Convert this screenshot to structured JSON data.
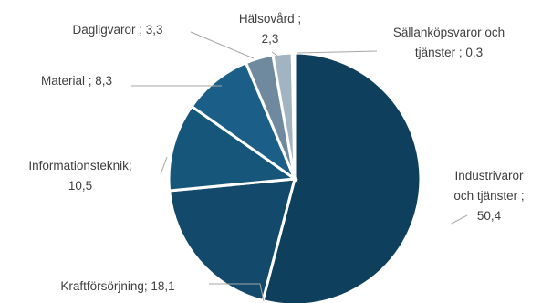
{
  "chart_data": {
    "type": "pie",
    "title": "",
    "slices": [
      {
        "label_lines": [
          "Industrivaror",
          "och tjänster ;",
          "50,4"
        ],
        "value": 50.4,
        "color": "#0e3f5c"
      },
      {
        "label_lines": [
          "Kraftförsörjning; 18,1"
        ],
        "value": 18.1,
        "color": "#134a6b"
      },
      {
        "label_lines": [
          "Informationsteknik;",
          "10,5"
        ],
        "value": 10.5,
        "color": "#16567b"
      },
      {
        "label_lines": [
          "Material ; 8,3"
        ],
        "value": 8.3,
        "color": "#1b5f88"
      },
      {
        "label_lines": [
          "Dagligvaror ; 3,3"
        ],
        "value": 3.3,
        "color": "#6f8a9e"
      },
      {
        "label_lines": [
          "Hälsovård ;",
          "2,3"
        ],
        "value": 2.3,
        "color": "#a2b3c1"
      },
      {
        "label_lines": [
          "Sällanköpsvaror och",
          "tjänster ; 0,3"
        ],
        "value": 0.3,
        "color": "#c3ced7"
      }
    ]
  }
}
